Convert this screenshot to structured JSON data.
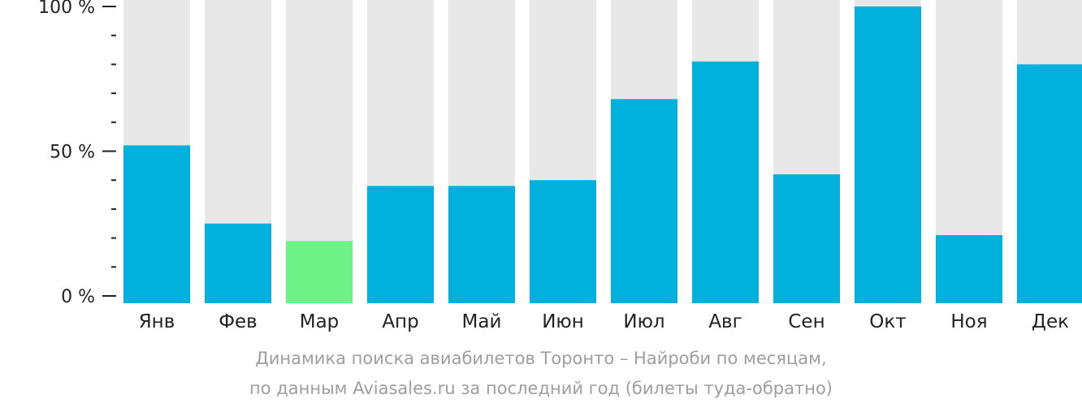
{
  "chart_data": {
    "type": "bar",
    "categories": [
      "Янв",
      "Фев",
      "Мар",
      "Апр",
      "Май",
      "Июн",
      "Июл",
      "Авг",
      "Сен",
      "Окт",
      "Ноя",
      "Дек"
    ],
    "values": [
      52,
      25,
      19,
      38,
      38,
      40,
      68,
      81,
      42,
      100,
      21,
      80
    ],
    "ylim": [
      0,
      100
    ],
    "yticks": [
      {
        "value": 0,
        "label": "0 %"
      },
      {
        "value": 50,
        "label": "50 %"
      },
      {
        "value": 100,
        "label": "100 %"
      }
    ],
    "minor_ticks": [
      10,
      20,
      30,
      40,
      60,
      70,
      80,
      90
    ],
    "highlight_index": 2,
    "colors": {
      "bar": "#00b1dd",
      "highlight": "#6cf388",
      "background_bar": "#e8e8e8",
      "axis": "#222222"
    },
    "caption_line1": "Динамика поиска авиабилетов Торонто – Найроби по месяцам,",
    "caption_line2": "по данным Aviasales.ru за последний год (билеты туда-обратно)"
  }
}
